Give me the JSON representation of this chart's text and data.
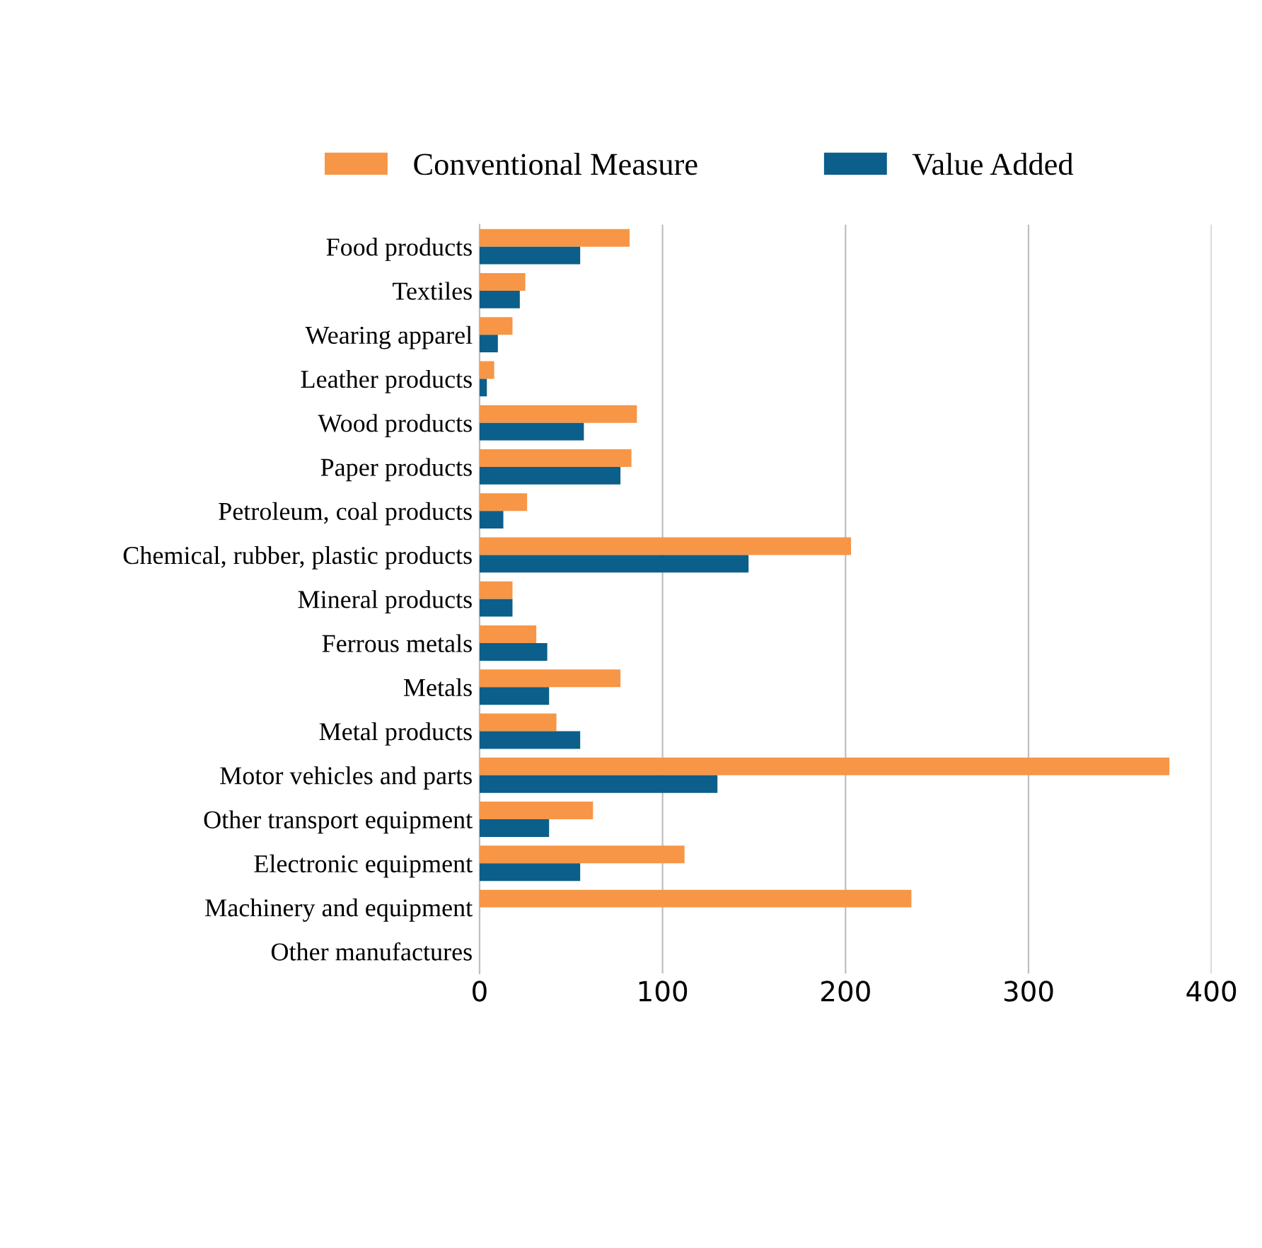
{
  "chart_data": {
    "type": "bar",
    "orientation": "horizontal",
    "categories": [
      "Food products",
      "Textiles",
      "Wearing apparel",
      "Leather products",
      "Wood products",
      "Paper products",
      "Petroleum, coal products",
      "Chemical, rubber, plastic products",
      "Mineral products",
      "Ferrous metals",
      "Metals",
      "Metal products",
      "Motor vehicles and parts",
      "Other transport equipment",
      "Electronic equipment",
      "Machinery and equipment",
      "Other manufactures"
    ],
    "series": [
      {
        "name": "Conventional Measure",
        "color": "#f79646",
        "values": [
          82,
          25,
          18,
          8,
          86,
          83,
          26,
          203,
          18,
          31,
          77,
          42,
          377,
          62,
          112,
          236,
          null
        ]
      },
      {
        "name": "Value Added",
        "color": "#0b5f8a",
        "values": [
          55,
          22,
          10,
          4,
          57,
          77,
          13,
          147,
          18,
          37,
          38,
          55,
          130,
          38,
          55,
          null,
          null
        ]
      }
    ],
    "xlim": [
      0,
      400
    ],
    "xticks": [
      0,
      100,
      200,
      300,
      400
    ],
    "grid": "x",
    "legend": "top"
  }
}
